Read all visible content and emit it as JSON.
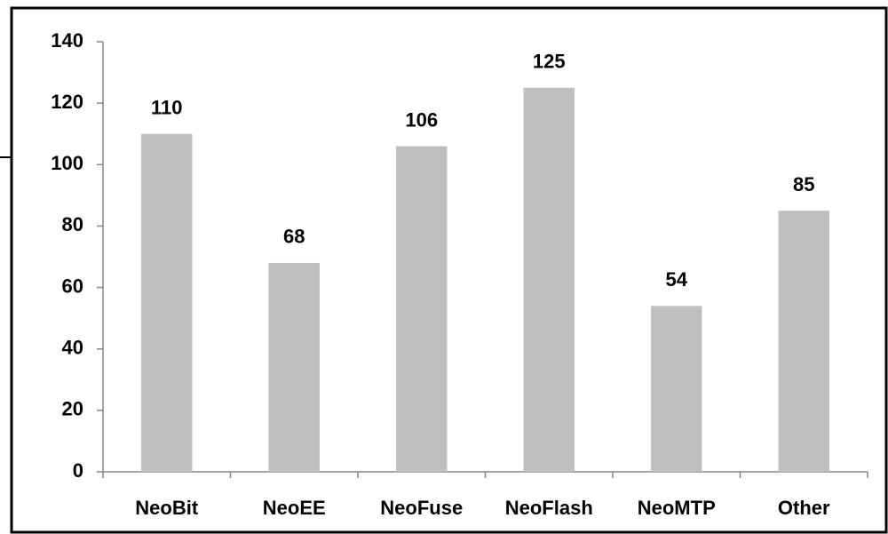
{
  "chart_data": {
    "type": "bar",
    "categories": [
      "NeoBit",
      "NeoEE",
      "NeoFuse",
      "NeoFlash",
      "NeoMTP",
      "Other"
    ],
    "values": [
      110,
      68,
      106,
      125,
      54,
      85
    ],
    "color": "#bfbfbf",
    "ylim": [
      0,
      140
    ],
    "yticks": [
      0,
      20,
      40,
      60,
      80,
      100,
      120,
      140
    ],
    "grid": false
  }
}
